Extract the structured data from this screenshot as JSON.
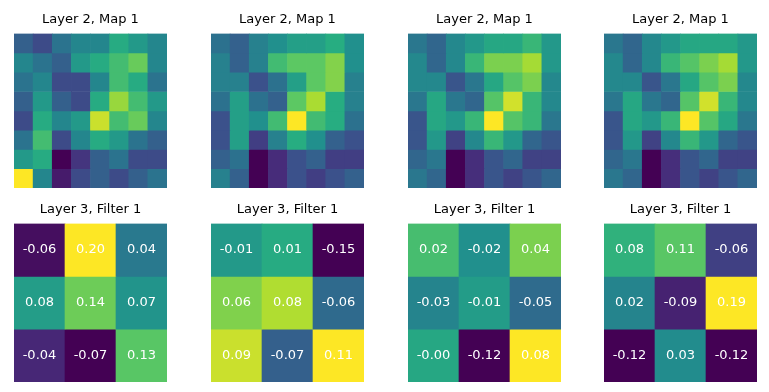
{
  "chart_data": [
    {
      "type": "heatmap",
      "title": "Layer 2, Map 1",
      "tick_labels": false,
      "cells": [
        [
          0.35,
          0.3,
          0.4,
          0.45,
          0.45,
          0.55,
          0.5,
          0.45
        ],
        [
          0.45,
          0.4,
          0.35,
          0.5,
          0.55,
          0.6,
          0.65,
          0.45
        ],
        [
          0.4,
          0.45,
          0.3,
          0.3,
          0.45,
          0.6,
          0.55,
          0.4
        ],
        [
          0.35,
          0.5,
          0.35,
          0.3,
          0.55,
          0.7,
          0.6,
          0.5
        ],
        [
          0.3,
          0.55,
          0.45,
          0.5,
          0.75,
          0.6,
          0.65,
          0.45
        ],
        [
          0.4,
          0.6,
          0.3,
          0.45,
          0.55,
          0.5,
          0.4,
          0.35
        ],
        [
          0.5,
          0.55,
          0.15,
          0.25,
          0.35,
          0.4,
          0.3,
          0.3
        ],
        [
          0.8,
          0.45,
          0.2,
          0.3,
          0.35,
          0.3,
          0.35,
          0.4
        ]
      ]
    },
    {
      "type": "heatmap",
      "title": "Layer 2, Map 1",
      "tick_labels": false,
      "cells": [
        [
          0.4,
          0.35,
          0.45,
          0.5,
          0.55,
          0.55,
          0.6,
          0.5
        ],
        [
          0.45,
          0.35,
          0.45,
          0.65,
          0.7,
          0.7,
          0.75,
          0.5
        ],
        [
          0.45,
          0.45,
          0.3,
          0.4,
          0.55,
          0.7,
          0.75,
          0.45
        ],
        [
          0.4,
          0.55,
          0.4,
          0.35,
          0.7,
          0.8,
          0.6,
          0.45
        ],
        [
          0.3,
          0.55,
          0.5,
          0.65,
          0.9,
          0.65,
          0.6,
          0.4
        ],
        [
          0.3,
          0.55,
          0.25,
          0.45,
          0.6,
          0.5,
          0.35,
          0.3
        ],
        [
          0.35,
          0.4,
          0.1,
          0.2,
          0.3,
          0.35,
          0.25,
          0.25
        ],
        [
          0.45,
          0.35,
          0.1,
          0.2,
          0.3,
          0.25,
          0.3,
          0.35
        ]
      ]
    },
    {
      "type": "heatmap",
      "title": "Layer 2, Map 1",
      "tick_labels": false,
      "cells": [
        [
          0.4,
          0.35,
          0.45,
          0.5,
          0.55,
          0.55,
          0.6,
          0.5
        ],
        [
          0.45,
          0.35,
          0.45,
          0.6,
          0.7,
          0.7,
          0.75,
          0.5
        ],
        [
          0.45,
          0.45,
          0.3,
          0.4,
          0.55,
          0.65,
          0.7,
          0.45
        ],
        [
          0.4,
          0.55,
          0.4,
          0.35,
          0.65,
          0.8,
          0.6,
          0.45
        ],
        [
          0.3,
          0.55,
          0.5,
          0.6,
          0.85,
          0.65,
          0.6,
          0.4
        ],
        [
          0.3,
          0.5,
          0.25,
          0.45,
          0.6,
          0.5,
          0.35,
          0.3
        ],
        [
          0.35,
          0.4,
          0.1,
          0.2,
          0.3,
          0.35,
          0.25,
          0.25
        ],
        [
          0.4,
          0.35,
          0.1,
          0.2,
          0.3,
          0.25,
          0.3,
          0.35
        ]
      ]
    },
    {
      "type": "heatmap",
      "title": "Layer 2, Map 1",
      "tick_labels": false,
      "cells": [
        [
          0.4,
          0.35,
          0.45,
          0.5,
          0.55,
          0.55,
          0.55,
          0.5
        ],
        [
          0.45,
          0.35,
          0.45,
          0.6,
          0.65,
          0.7,
          0.75,
          0.5
        ],
        [
          0.45,
          0.45,
          0.3,
          0.4,
          0.55,
          0.65,
          0.7,
          0.45
        ],
        [
          0.4,
          0.55,
          0.4,
          0.35,
          0.65,
          0.8,
          0.6,
          0.45
        ],
        [
          0.3,
          0.55,
          0.5,
          0.6,
          0.85,
          0.65,
          0.55,
          0.4
        ],
        [
          0.3,
          0.5,
          0.25,
          0.45,
          0.6,
          0.5,
          0.35,
          0.3
        ],
        [
          0.35,
          0.4,
          0.1,
          0.2,
          0.3,
          0.35,
          0.25,
          0.25
        ],
        [
          0.4,
          0.35,
          0.1,
          0.2,
          0.3,
          0.25,
          0.3,
          0.35
        ]
      ]
    },
    {
      "type": "heatmap",
      "title": "Layer 3, Filter 1",
      "tick_labels": false,
      "data_labels": true,
      "cells": [
        [
          -0.06,
          0.2,
          0.04
        ],
        [
          0.08,
          0.14,
          0.07
        ],
        [
          -0.04,
          -0.07,
          0.13
        ]
      ],
      "value_labels": [
        [
          "-0.06",
          "0.20",
          "0.04"
        ],
        [
          "0.08",
          "0.14",
          "0.07"
        ],
        [
          "-0.04",
          "-0.07",
          "0.13"
        ]
      ]
    },
    {
      "type": "heatmap",
      "title": "Layer 3, Filter 1",
      "tick_labels": false,
      "data_labels": true,
      "cells": [
        [
          -0.01,
          0.01,
          -0.15
        ],
        [
          0.06,
          0.08,
          -0.06
        ],
        [
          0.09,
          -0.07,
          0.11
        ]
      ],
      "value_labels": [
        [
          "-0.01",
          "0.01",
          "-0.15"
        ],
        [
          "0.06",
          "0.08",
          "-0.06"
        ],
        [
          "0.09",
          "-0.07",
          "0.11"
        ]
      ]
    },
    {
      "type": "heatmap",
      "title": "Layer 3, Filter 1",
      "tick_labels": false,
      "data_labels": true,
      "cells": [
        [
          0.02,
          -0.02,
          0.04
        ],
        [
          -0.03,
          -0.01,
          -0.05
        ],
        [
          0,
          -0.12,
          0.08
        ]
      ],
      "value_labels": [
        [
          "0.02",
          "-0.02",
          "0.04"
        ],
        [
          "-0.03",
          "-0.01",
          "-0.05"
        ],
        [
          "-0.00",
          "-0.12",
          "0.08"
        ]
      ]
    },
    {
      "type": "heatmap",
      "title": "Layer 3, Filter 1",
      "tick_labels": false,
      "data_labels": true,
      "cells": [
        [
          0.08,
          0.11,
          -0.06
        ],
        [
          0.02,
          -0.09,
          0.19
        ],
        [
          -0.12,
          0.03,
          -0.12
        ]
      ],
      "value_labels": [
        [
          "0.08",
          "0.11",
          "-0.06"
        ],
        [
          "0.02",
          "-0.09",
          "0.19"
        ],
        [
          "-0.12",
          "0.03",
          "-0.12"
        ]
      ]
    }
  ]
}
